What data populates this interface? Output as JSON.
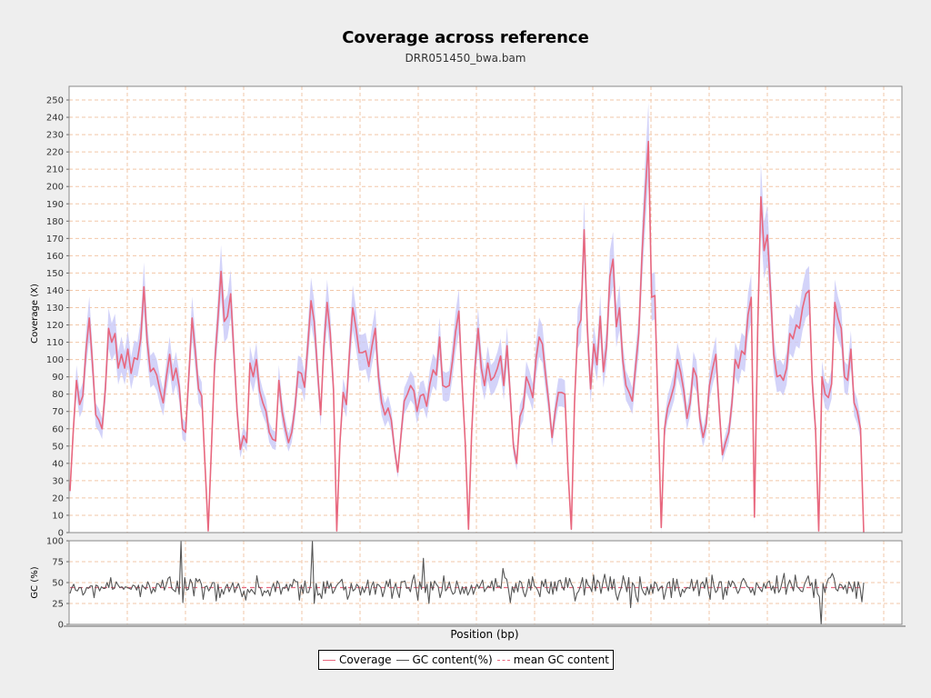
{
  "chart_data": [
    {
      "type": "line",
      "title": "Coverage across reference",
      "subtitle": "DRR051450_bwa.bam",
      "ylabel": "Coverage (X)",
      "ylim": [
        0,
        255
      ],
      "yticks": [
        0,
        10,
        20,
        30,
        40,
        50,
        60,
        70,
        80,
        90,
        100,
        110,
        120,
        130,
        140,
        150,
        160,
        170,
        180,
        190,
        200,
        210,
        220,
        230,
        240,
        250
      ],
      "grid": true,
      "colors": {
        "coverage": "#e8677e",
        "band": "#c8c8f8",
        "grid": "#f2c7a8"
      },
      "series": [
        {
          "name": "Coverage",
          "values": [
            24,
            58,
            88,
            74,
            79,
            106,
            124,
            98,
            68,
            65,
            60,
            83,
            118,
            110,
            115,
            95,
            103,
            95,
            106,
            92,
            101,
            100,
            112,
            142,
            111,
            93,
            95,
            91,
            82,
            75,
            90,
            103,
            88,
            95,
            84,
            60,
            58,
            92,
            124,
            105,
            83,
            79,
            40,
            1,
            48,
            97,
            123,
            151,
            122,
            125,
            138,
            104,
            70,
            48,
            56,
            52,
            98,
            90,
            100,
            82,
            75,
            70,
            58,
            54,
            53,
            88,
            70,
            60,
            52,
            58,
            72,
            93,
            92,
            84,
            108,
            134,
            122,
            95,
            68,
            108,
            133,
            115,
            83,
            1,
            52,
            81,
            74,
            105,
            130,
            118,
            104,
            104,
            105,
            96,
            108,
            118,
            90,
            75,
            68,
            72,
            65,
            48,
            35,
            56,
            76,
            80,
            85,
            82,
            70,
            79,
            80,
            73,
            86,
            94,
            91,
            113,
            85,
            84,
            85,
            99,
            116,
            128,
            87,
            52,
            2,
            58,
            95,
            118,
            95,
            85,
            98,
            88,
            90,
            95,
            102,
            85,
            108,
            80,
            50,
            40,
            67,
            72,
            90,
            85,
            78,
            100,
            113,
            109,
            91,
            75,
            55,
            70,
            81,
            81,
            80,
            35,
            2,
            75,
            118,
            123,
            175,
            118,
            83,
            109,
            97,
            125,
            93,
            108,
            148,
            158,
            119,
            130,
            100,
            85,
            81,
            76,
            96,
            115,
            160,
            196,
            226,
            136,
            137,
            70,
            3,
            60,
            72,
            78,
            85,
            100,
            93,
            82,
            66,
            75,
            95,
            90,
            66,
            55,
            63,
            85,
            95,
            103,
            72,
            45,
            52,
            58,
            75,
            100,
            95,
            105,
            103,
            126,
            136,
            9,
            118,
            194,
            163,
            172,
            140,
            103,
            90,
            91,
            88,
            95,
            115,
            112,
            120,
            118,
            130,
            138,
            140,
            87,
            60,
            1,
            90,
            80,
            78,
            86,
            133,
            124,
            118,
            90,
            88,
            106,
            75,
            70,
            60,
            0
          ]
        }
      ]
    },
    {
      "type": "line",
      "ylabel": "GC (%)",
      "xlabel": "Position (bp)",
      "ylim": [
        0,
        100
      ],
      "yticks": [
        0,
        25,
        50,
        75,
        100
      ],
      "grid": true,
      "colors": {
        "gc": "#555555",
        "mean": "#e8677e"
      },
      "mean_gc": 44,
      "series": [
        {
          "name": "GC content(%)",
          "values": [
            37,
            44,
            48,
            41,
            40,
            44,
            44,
            35,
            38,
            44,
            43,
            46,
            46,
            32,
            47,
            46,
            40,
            45,
            43,
            43,
            50,
            44,
            56,
            42,
            43,
            51,
            47,
            44,
            45,
            42,
            45,
            44,
            43,
            42,
            47,
            46,
            41,
            47,
            33,
            47,
            44,
            42,
            51,
            46,
            37,
            43,
            39,
            49,
            48,
            44,
            53,
            41,
            47,
            55,
            57,
            43,
            41,
            39,
            52,
            36,
            99,
            26,
            56,
            41,
            42,
            54,
            49,
            34,
            55,
            51,
            54,
            48,
            30,
            45,
            46,
            40,
            44,
            50,
            50,
            28,
            48,
            32,
            42,
            36,
            44,
            48,
            39,
            44,
            50,
            38,
            44,
            49,
            42,
            33,
            40,
            29,
            42,
            38,
            42,
            39,
            36,
            58,
            45,
            43,
            34,
            40,
            38,
            41,
            34,
            43,
            49,
            39,
            52,
            48,
            36,
            44,
            43,
            48,
            40,
            48,
            45,
            54,
            51,
            51,
            29,
            47,
            37,
            52,
            38,
            38,
            47,
            100,
            25,
            49,
            35,
            37,
            31,
            51,
            37,
            52,
            43,
            49,
            37,
            41,
            46,
            49,
            51,
            54,
            41,
            45,
            30,
            36,
            49,
            40,
            42,
            48,
            45,
            35,
            45,
            38,
            44,
            53,
            35,
            46,
            51,
            36,
            48,
            47,
            44,
            33,
            41,
            52,
            45,
            54,
            31,
            42,
            49,
            39,
            32,
            51,
            51,
            52,
            43,
            44,
            39,
            52,
            59,
            44,
            29,
            51,
            42,
            79,
            38,
            48,
            25,
            51,
            41,
            52,
            48,
            45,
            32,
            40,
            58,
            40,
            43,
            51,
            41,
            36,
            38,
            52,
            45,
            36,
            45,
            37,
            45,
            35,
            40,
            47,
            36,
            43,
            48,
            43,
            48,
            53,
            39,
            43,
            46,
            44,
            52,
            40,
            55,
            45,
            46,
            43,
            67,
            56,
            54,
            42,
            26,
            45,
            38,
            49,
            39,
            52,
            50,
            39,
            33,
            41,
            54,
            41,
            57,
            46,
            44,
            40,
            33,
            52,
            45,
            54,
            40,
            37,
            51,
            36,
            51,
            40,
            52,
            53,
            45,
            41,
            56,
            44,
            55,
            48,
            44,
            28,
            37,
            40,
            47,
            56,
            35,
            54,
            47,
            45,
            39,
            59,
            40,
            53,
            50,
            37,
            50,
            60,
            48,
            40,
            57,
            42,
            54,
            37,
            29,
            38,
            44,
            58,
            49,
            39,
            56,
            20,
            50,
            46,
            33,
            27,
            57,
            43,
            38,
            35,
            45,
            36,
            48,
            37,
            51,
            48,
            40,
            44,
            46,
            30,
            40,
            49,
            51,
            32,
            55,
            40,
            54,
            42,
            33,
            42,
            38,
            43,
            44,
            43,
            54,
            40,
            46,
            53,
            34,
            48,
            51,
            43,
            56,
            40,
            30,
            59,
            46,
            38,
            41,
            51,
            51,
            30,
            44,
            35,
            52,
            45,
            52,
            49,
            43,
            37,
            42,
            51,
            55,
            51,
            45,
            44,
            38,
            43,
            35,
            50,
            46,
            42,
            39,
            49,
            43,
            50,
            52,
            41,
            46,
            37,
            58,
            38,
            42,
            52,
            61,
            36,
            47,
            53,
            47,
            40,
            59,
            45,
            43,
            40,
            39,
            48,
            53,
            58,
            46,
            50,
            32,
            54,
            37,
            33,
            0,
            49,
            38,
            49,
            55,
            56,
            61,
            55,
            42,
            40,
            48,
            47,
            42,
            47,
            37,
            51,
            46,
            39,
            51,
            31,
            51,
            44,
            27,
            50
          ]
        },
        {
          "name": "mean GC content",
          "values": [
            44,
            44
          ]
        }
      ]
    }
  ]
}
